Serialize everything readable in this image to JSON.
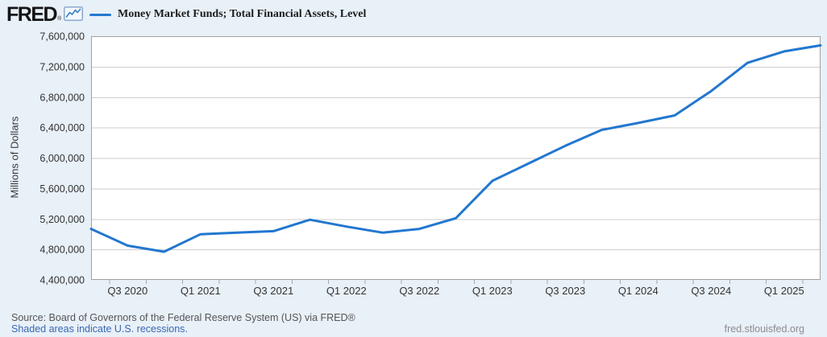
{
  "header": {
    "logo_text": "FRED",
    "logo_mark": "®",
    "legend_label": "Money Market Funds; Total Financial Assets, Level"
  },
  "footer": {
    "source": "Source: Board of Governors of the Federal Reserve System (US) via FRED®",
    "recessions_note": "Shaded areas indicate U.S. recessions.",
    "site": "fred.stlouisfed.org"
  },
  "colors": {
    "background": "#e8f0f8",
    "plot_bg": "#ffffff",
    "plot_border": "#a0a0a0",
    "grid": "#cdcdcd",
    "tick": "#a8a8a8",
    "axis_text": "#333333",
    "line": "#2277cf",
    "link": "#3a68b2"
  },
  "chart_data": {
    "type": "line",
    "series_name": "Money Market Funds; Total Financial Assets, Level",
    "ylabel": "Millions of Dollars",
    "grid": true,
    "legend_position": "top-left",
    "line_width": 3,
    "ylim": [
      4400000,
      7600000
    ],
    "y_tick_values": [
      4400000,
      4800000,
      5200000,
      5600000,
      6000000,
      6400000,
      6800000,
      7200000,
      7600000
    ],
    "y_tick_labels": [
      "4,400,000",
      "4,800,000",
      "5,200,000",
      "5,600,000",
      "6,000,000",
      "6,400,000",
      "6,800,000",
      "7,200,000",
      "7,600,000"
    ],
    "x": [
      "Q2 2020",
      "Q3 2020",
      "Q4 2020",
      "Q1 2021",
      "Q2 2021",
      "Q3 2021",
      "Q4 2021",
      "Q1 2022",
      "Q2 2022",
      "Q3 2022",
      "Q4 2022",
      "Q1 2023",
      "Q2 2023",
      "Q3 2023",
      "Q4 2023",
      "Q1 2024",
      "Q2 2024",
      "Q3 2024",
      "Q4 2024",
      "Q1 2025",
      "Q2 2025"
    ],
    "values": [
      5070000,
      4850000,
      4770000,
      5000000,
      5020000,
      5040000,
      5190000,
      5100000,
      5020000,
      5070000,
      5210000,
      5700000,
      5930000,
      6160000,
      6370000,
      6460000,
      6560000,
      6880000,
      7250000,
      7400000,
      7480000
    ],
    "x_tick_indices": [
      1,
      3,
      5,
      7,
      9,
      11,
      13,
      15,
      17,
      19
    ],
    "x_tick_labels": [
      "Q3 2020",
      "Q1 2021",
      "Q3 2021",
      "Q1 2022",
      "Q3 2022",
      "Q1 2023",
      "Q3 2023",
      "Q1 2024",
      "Q3 2024",
      "Q1 2025"
    ]
  }
}
